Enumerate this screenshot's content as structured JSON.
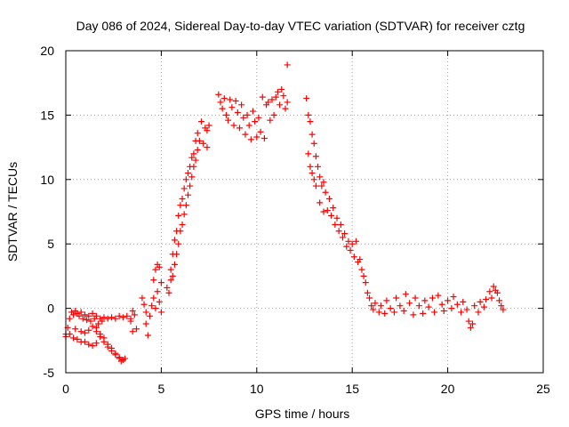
{
  "chart_data": {
    "type": "scatter",
    "title": "Day 086 of 2024, Sidereal Day-to-day VTEC variation (SDTVAR) for receiver cztg",
    "xlabel": "GPS time / hours",
    "ylabel": "SDTVAR / TECUs",
    "xlim": [
      0,
      25
    ],
    "ylim": [
      -5,
      20
    ],
    "xticks": [
      0,
      5,
      10,
      15,
      20,
      25
    ],
    "yticks": [
      -5,
      0,
      5,
      10,
      15,
      20
    ],
    "xtick_labels": [
      "0",
      "5",
      "10",
      "15",
      "20",
      "25"
    ],
    "ytick_labels": [
      "-5",
      "0",
      "5",
      "10",
      "15",
      "20"
    ],
    "grid": true,
    "marker": "+",
    "color": "#ff0000",
    "series": [
      {
        "name": "SDTVAR",
        "points": [
          [
            0.0,
            -2.0
          ],
          [
            0.1,
            -1.5
          ],
          [
            0.2,
            -0.8
          ],
          [
            0.3,
            -0.3
          ],
          [
            0.4,
            -0.5
          ],
          [
            0.5,
            -0.2
          ],
          [
            0.6,
            -0.4
          ],
          [
            0.7,
            -0.6
          ],
          [
            0.8,
            -0.3
          ],
          [
            0.9,
            -0.8
          ],
          [
            1.0,
            -0.5
          ],
          [
            1.1,
            -0.9
          ],
          [
            1.2,
            -0.6
          ],
          [
            1.3,
            -1.0
          ],
          [
            1.4,
            -0.4
          ],
          [
            1.5,
            -0.8
          ],
          [
            1.6,
            -0.6
          ],
          [
            1.7,
            -1.2
          ],
          [
            1.8,
            -0.8
          ],
          [
            1.9,
            -1.0
          ],
          [
            2.0,
            -0.7
          ],
          [
            2.2,
            -0.8
          ],
          [
            2.4,
            -0.7
          ],
          [
            2.6,
            -0.8
          ],
          [
            2.8,
            -0.6
          ],
          [
            3.0,
            -0.7
          ],
          [
            3.2,
            -0.6
          ],
          [
            3.4,
            -0.8
          ],
          [
            0.0,
            -2.2
          ],
          [
            0.2,
            -2.0
          ],
          [
            0.4,
            -2.3
          ],
          [
            0.6,
            -2.4
          ],
          [
            0.8,
            -2.6
          ],
          [
            1.0,
            -2.6
          ],
          [
            1.2,
            -2.8
          ],
          [
            1.4,
            -2.9
          ],
          [
            1.6,
            -2.7
          ],
          [
            0.5,
            -1.6
          ],
          [
            0.8,
            -1.8
          ],
          [
            1.0,
            -1.9
          ],
          [
            1.2,
            -1.7
          ],
          [
            1.4,
            -1.4
          ],
          [
            1.6,
            -1.8
          ],
          [
            1.8,
            -2.2
          ],
          [
            2.0,
            -2.6
          ],
          [
            2.2,
            -3.0
          ],
          [
            2.4,
            -3.3
          ],
          [
            2.6,
            -3.6
          ],
          [
            2.8,
            -3.9
          ],
          [
            2.9,
            -4.1
          ],
          [
            3.0,
            -4.0
          ],
          [
            3.1,
            -3.9
          ],
          [
            1.6,
            -1.5
          ],
          [
            1.8,
            -2.0
          ],
          [
            2.0,
            -2.3
          ],
          [
            2.2,
            -2.8
          ],
          [
            2.4,
            -3.1
          ],
          [
            2.6,
            -3.5
          ],
          [
            2.8,
            -3.8
          ],
          [
            3.4,
            -1.0
          ],
          [
            3.5,
            -1.8
          ],
          [
            3.6,
            -0.5
          ],
          [
            3.7,
            -1.6
          ],
          [
            3.5,
            -0.2
          ],
          [
            4.0,
            0.8
          ],
          [
            4.1,
            0.3
          ],
          [
            4.2,
            -0.3
          ],
          [
            4.2,
            -1.2
          ],
          [
            4.3,
            -2.1
          ],
          [
            4.4,
            -0.6
          ],
          [
            4.5,
            0.2
          ],
          [
            4.6,
            0.8
          ],
          [
            4.7,
            0.0
          ],
          [
            4.8,
            1.3
          ],
          [
            4.9,
            0.5
          ],
          [
            4.6,
            2.2
          ],
          [
            4.7,
            3.0
          ],
          [
            4.8,
            3.4
          ],
          [
            4.9,
            3.2
          ],
          [
            5.0,
            2.0
          ],
          [
            5.0,
            -0.3
          ],
          [
            5.3,
            1.6
          ],
          [
            5.4,
            1.2
          ],
          [
            5.5,
            2.2
          ],
          [
            5.5,
            3.0
          ],
          [
            5.6,
            4.2
          ],
          [
            5.6,
            2.5
          ],
          [
            5.7,
            5.3
          ],
          [
            5.7,
            3.4
          ],
          [
            5.8,
            6.0
          ],
          [
            5.8,
            4.2
          ],
          [
            5.9,
            7.2
          ],
          [
            5.9,
            5.0
          ],
          [
            6.0,
            8.0
          ],
          [
            6.0,
            6.0
          ],
          [
            6.1,
            8.5
          ],
          [
            6.1,
            6.5
          ],
          [
            6.2,
            9.3
          ],
          [
            6.2,
            7.3
          ],
          [
            6.3,
            10.0
          ],
          [
            6.3,
            8.0
          ],
          [
            6.4,
            10.5
          ],
          [
            6.4,
            8.8
          ],
          [
            6.5,
            11.0
          ],
          [
            6.5,
            9.5
          ],
          [
            6.6,
            11.7
          ],
          [
            6.6,
            10.2
          ],
          [
            6.7,
            12.0
          ],
          [
            6.7,
            11.0
          ],
          [
            6.8,
            13.0
          ],
          [
            6.8,
            11.5
          ],
          [
            6.9,
            13.6
          ],
          [
            6.9,
            12.3
          ],
          [
            7.0,
            13.0
          ],
          [
            7.1,
            14.5
          ],
          [
            7.2,
            12.8
          ],
          [
            7.3,
            14.0
          ],
          [
            7.4,
            12.5
          ],
          [
            7.4,
            13.8
          ],
          [
            7.5,
            14.2
          ],
          [
            8.0,
            16.6
          ],
          [
            8.1,
            16.0
          ],
          [
            8.2,
            15.5
          ],
          [
            8.3,
            16.3
          ],
          [
            8.4,
            15.0
          ],
          [
            8.5,
            14.6
          ],
          [
            8.6,
            16.2
          ],
          [
            8.7,
            15.6
          ],
          [
            8.8,
            14.2
          ],
          [
            8.9,
            16.1
          ],
          [
            9.0,
            15.2
          ],
          [
            9.1,
            14.0
          ],
          [
            9.2,
            15.8
          ],
          [
            9.3,
            14.8
          ],
          [
            9.4,
            13.5
          ],
          [
            9.5,
            15.0
          ],
          [
            9.6,
            14.2
          ],
          [
            9.7,
            13.1
          ],
          [
            9.8,
            15.3
          ],
          [
            9.9,
            14.5
          ],
          [
            10.0,
            13.3
          ],
          [
            10.1,
            14.8
          ],
          [
            10.2,
            13.7
          ],
          [
            10.3,
            16.4
          ],
          [
            10.4,
            13.2
          ],
          [
            10.5,
            15.8
          ],
          [
            10.6,
            16.0
          ],
          [
            10.7,
            14.6
          ],
          [
            10.8,
            16.2
          ],
          [
            10.9,
            15.0
          ],
          [
            11.0,
            16.4
          ],
          [
            11.1,
            16.8
          ],
          [
            11.2,
            15.8
          ],
          [
            11.3,
            17.0
          ],
          [
            11.4,
            16.5
          ],
          [
            11.5,
            15.5
          ],
          [
            11.6,
            16.0
          ],
          [
            11.6,
            18.9
          ],
          [
            12.6,
            16.3
          ],
          [
            12.7,
            15.0
          ],
          [
            12.7,
            12.0
          ],
          [
            12.8,
            14.5
          ],
          [
            12.8,
            11.0
          ],
          [
            12.9,
            13.5
          ],
          [
            12.9,
            10.5
          ],
          [
            13.0,
            12.8
          ],
          [
            13.0,
            10.0
          ],
          [
            13.1,
            11.8
          ],
          [
            13.1,
            9.5
          ],
          [
            13.2,
            11.0
          ],
          [
            13.3,
            10.2
          ],
          [
            13.3,
            8.2
          ],
          [
            13.4,
            9.5
          ],
          [
            13.5,
            9.8
          ],
          [
            13.5,
            7.5
          ],
          [
            13.6,
            9.0
          ],
          [
            13.7,
            7.6
          ],
          [
            13.8,
            8.5
          ],
          [
            13.9,
            7.2
          ],
          [
            14.0,
            7.8
          ],
          [
            14.1,
            6.5
          ],
          [
            14.2,
            7.0
          ],
          [
            14.3,
            6.0
          ],
          [
            14.4,
            6.5
          ],
          [
            14.5,
            5.5
          ],
          [
            14.6,
            5.8
          ],
          [
            14.7,
            4.8
          ],
          [
            14.8,
            5.2
          ],
          [
            14.9,
            4.5
          ],
          [
            15.0,
            5.0
          ],
          [
            15.1,
            4.0
          ],
          [
            15.2,
            5.2
          ],
          [
            15.3,
            3.6
          ],
          [
            15.4,
            3.8
          ],
          [
            15.5,
            3.0
          ],
          [
            15.6,
            2.5
          ],
          [
            15.7,
            2.0
          ],
          [
            15.8,
            1.2
          ],
          [
            15.9,
            0.8
          ],
          [
            16.0,
            0.2
          ],
          [
            16.1,
            -0.1
          ],
          [
            16.2,
            0.4
          ],
          [
            16.4,
            -0.3
          ],
          [
            16.5,
            0.2
          ],
          [
            16.7,
            -0.4
          ],
          [
            16.8,
            0.6
          ],
          [
            17.0,
            0.0
          ],
          [
            17.2,
            -0.3
          ],
          [
            17.3,
            0.8
          ],
          [
            17.5,
            0.2
          ],
          [
            17.7,
            -0.2
          ],
          [
            17.8,
            1.1
          ],
          [
            18.0,
            0.4
          ],
          [
            18.2,
            -0.5
          ],
          [
            18.3,
            0.8
          ],
          [
            18.5,
            0.2
          ],
          [
            18.7,
            -0.4
          ],
          [
            18.8,
            0.6
          ],
          [
            19.0,
            0.1
          ],
          [
            19.2,
            0.8
          ],
          [
            19.3,
            -0.3
          ],
          [
            19.5,
            1.0
          ],
          [
            19.7,
            0.3
          ],
          [
            19.8,
            -0.2
          ],
          [
            20.0,
            0.6
          ],
          [
            20.2,
            0.0
          ],
          [
            20.3,
            0.9
          ],
          [
            20.5,
            0.3
          ],
          [
            20.7,
            -0.3
          ],
          [
            20.8,
            0.5
          ],
          [
            21.0,
            -0.1
          ],
          [
            21.1,
            -1.0
          ],
          [
            21.2,
            -1.5
          ],
          [
            21.3,
            -1.2
          ],
          [
            21.4,
            0.2
          ],
          [
            21.6,
            -0.3
          ],
          [
            21.7,
            0.5
          ],
          [
            21.9,
            0.1
          ],
          [
            22.0,
            0.7
          ],
          [
            22.2,
            1.3
          ],
          [
            22.3,
            0.8
          ],
          [
            22.4,
            1.7
          ],
          [
            22.5,
            1.4
          ],
          [
            22.6,
            1.2
          ],
          [
            22.7,
            0.6
          ],
          [
            22.8,
            0.2
          ],
          [
            22.9,
            -0.1
          ]
        ]
      }
    ]
  }
}
